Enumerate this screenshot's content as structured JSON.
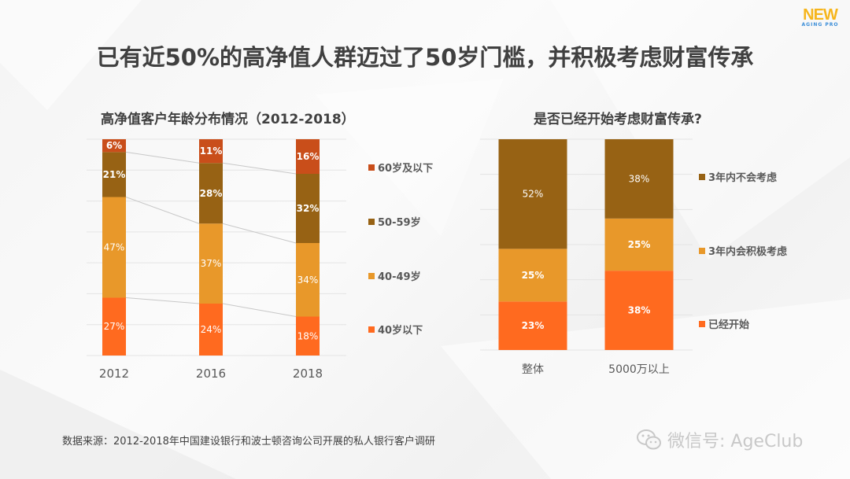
{
  "header": {
    "title": "已有近50%的高净值人群迈过了50岁门槛，并积极考虑财富传承",
    "logo_main": "NEW",
    "logo_sub": "AGING PRO"
  },
  "footer": {
    "source": "数据来源：2012-2018年中国建设银行和波士顿咨询公司开展的私人银行客户调研",
    "watermark": "微信号: AgeClub",
    "watermark_icon": "wechat-icon"
  },
  "chart_data": [
    {
      "type": "bar",
      "stacked": true,
      "percent_stacked": true,
      "title": "高净值客户年龄分布情况（2012-2018）",
      "categories": [
        "2012",
        "2016",
        "2018"
      ],
      "series": [
        {
          "name": "40岁以下",
          "color": "#ff6a1f",
          "values": [
            27,
            24,
            18
          ],
          "labels": [
            "27%",
            "24%",
            "18%"
          ]
        },
        {
          "name": "40-49岁",
          "color": "#e8982a",
          "values": [
            47,
            37,
            34
          ],
          "labels": [
            "47%",
            "37%",
            "34%"
          ]
        },
        {
          "name": "50-59岁",
          "color": "#976214",
          "values": [
            21,
            28,
            32
          ],
          "labels": [
            "21%",
            "28%",
            "32%"
          ]
        },
        {
          "name": "60岁及以下",
          "color": "#c94e1a",
          "values": [
            6,
            11,
            16
          ],
          "labels": [
            "6%",
            "11%",
            "16%"
          ]
        }
      ],
      "legend_order": [
        "60岁及以下",
        "50-59岁",
        "40-49岁",
        "40岁以下"
      ],
      "legend": "right",
      "series_lines": true,
      "grid": true,
      "xlabel": "",
      "ylabel": ""
    },
    {
      "type": "bar",
      "stacked": true,
      "percent_stacked": true,
      "title": "是否已经开始考虑财富传承?",
      "categories": [
        "整体",
        "5000万以上"
      ],
      "series": [
        {
          "name": "已经开始",
          "color": "#ff6a1f",
          "values": [
            23,
            38
          ],
          "labels": [
            "23%",
            "38%"
          ]
        },
        {
          "name": "3年内会积极考虑",
          "color": "#e8982a",
          "values": [
            25,
            25
          ],
          "labels": [
            "25%",
            "25%"
          ]
        },
        {
          "name": "3年内不会考虑",
          "color": "#976214",
          "values": [
            52,
            38
          ],
          "labels": [
            "52%",
            "38%"
          ]
        }
      ],
      "legend_order": [
        "3年内不会考虑",
        "3年内会积极考虑",
        "已经开始"
      ],
      "legend": "right",
      "grid": true,
      "xlabel": "",
      "ylabel": ""
    }
  ]
}
